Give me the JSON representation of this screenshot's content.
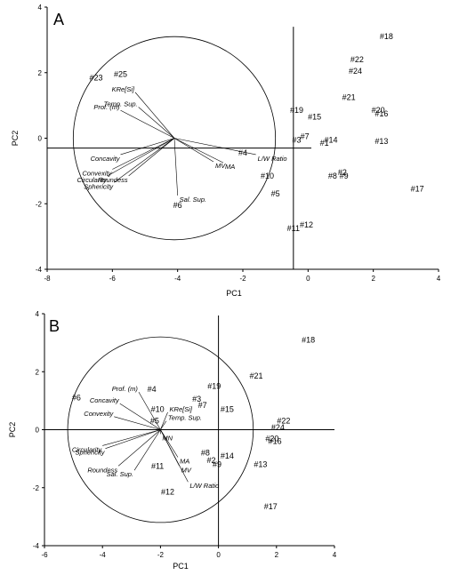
{
  "chart_data": [
    {
      "type": "scatter",
      "panel_label": "A",
      "xlabel": "PC1",
      "ylabel": "PC2",
      "xlim": [
        -8,
        4
      ],
      "ylim": [
        -4,
        4
      ],
      "xticks": [
        -8,
        -6,
        -4,
        -2,
        0,
        2,
        4
      ],
      "yticks": [
        -4,
        -2,
        0,
        2,
        4
      ],
      "reference_lines": {
        "x": -0.45,
        "y": -0.3
      },
      "circle": {
        "cx": -4.1,
        "cy": 0,
        "r": 3.1
      },
      "points": [
        {
          "label": "#18",
          "x": 2.4,
          "y": 3.1
        },
        {
          "label": "#22",
          "x": 1.5,
          "y": 2.4
        },
        {
          "label": "#24",
          "x": 1.45,
          "y": 2.05
        },
        {
          "label": "#21",
          "x": 1.25,
          "y": 1.25
        },
        {
          "label": "#20",
          "x": 2.15,
          "y": 0.85
        },
        {
          "label": "#16",
          "x": 2.25,
          "y": 0.75
        },
        {
          "label": "#19",
          "x": -0.35,
          "y": 0.85
        },
        {
          "label": "#15",
          "x": 0.2,
          "y": 0.65
        },
        {
          "label": "#7",
          "x": -0.1,
          "y": 0.05
        },
        {
          "label": "#3",
          "x": -0.35,
          "y": -0.05
        },
        {
          "label": "#14",
          "x": 0.7,
          "y": -0.05
        },
        {
          "label": "#1",
          "x": 0.5,
          "y": -0.15
        },
        {
          "label": "#13",
          "x": 2.25,
          "y": -0.1
        },
        {
          "label": "#2",
          "x": 1.05,
          "y": -1.05
        },
        {
          "label": "#9",
          "x": 1.1,
          "y": -1.15
        },
        {
          "label": "#8",
          "x": 0.75,
          "y": -1.15
        },
        {
          "label": "#17",
          "x": 3.35,
          "y": -1.55
        },
        {
          "label": "#4",
          "x": -2.0,
          "y": -0.45
        },
        {
          "label": "#10",
          "x": -1.25,
          "y": -1.15
        },
        {
          "label": "#5",
          "x": -1.0,
          "y": -1.7
        },
        {
          "label": "#11",
          "x": -0.45,
          "y": -2.75
        },
        {
          "label": "#12",
          "x": -0.05,
          "y": -2.65
        },
        {
          "label": "#6",
          "x": -4.0,
          "y": -2.05
        },
        {
          "label": "#23",
          "x": -6.5,
          "y": 1.85
        },
        {
          "label": "#25",
          "x": -5.75,
          "y": 1.95
        }
      ],
      "vectors": [
        {
          "label": "KRe[Si]",
          "x": -5.3,
          "y": 1.4
        },
        {
          "label": "Temp. Sup.",
          "x": -5.2,
          "y": 0.95
        },
        {
          "label": "Prof. (m)",
          "x": -5.75,
          "y": 0.85
        },
        {
          "label": "Concavity",
          "x": -5.75,
          "y": -0.5
        },
        {
          "label": "Convexity",
          "x": -6.0,
          "y": -0.95
        },
        {
          "label": "Circularity",
          "x": -6.15,
          "y": -1.15
        },
        {
          "label": "Roundess",
          "x": -5.5,
          "y": -1.15
        },
        {
          "label": "Sphericity",
          "x": -5.95,
          "y": -1.35
        },
        {
          "label": "Sal. Sup.",
          "x": -4.0,
          "y": -1.75
        },
        {
          "label": "L/W Ratio",
          "x": -1.6,
          "y": -0.5
        },
        {
          "label": "MA",
          "x": -2.6,
          "y": -0.75
        },
        {
          "label": "MV",
          "x": -2.9,
          "y": -0.72
        }
      ]
    },
    {
      "type": "scatter",
      "panel_label": "B",
      "xlabel": "PC1",
      "ylabel": "PC2",
      "xlim": [
        -6,
        4
      ],
      "ylim": [
        -4,
        4
      ],
      "xticks": [
        -6,
        -4,
        -2,
        0,
        2,
        4
      ],
      "yticks": [
        -4,
        -2,
        0,
        2,
        4
      ],
      "reference_lines": {
        "x": 0,
        "y": 0
      },
      "circle": {
        "cx": -2,
        "cy": 0,
        "r": 3.2
      },
      "points": [
        {
          "label": "#18",
          "x": 3.1,
          "y": 3.1
        },
        {
          "label": "#21",
          "x": 1.3,
          "y": 1.85
        },
        {
          "label": "#19",
          "x": -0.15,
          "y": 1.5
        },
        {
          "label": "#4",
          "x": -2.3,
          "y": 1.4
        },
        {
          "label": "#6",
          "x": -4.9,
          "y": 1.1
        },
        {
          "label": "#10",
          "x": -2.1,
          "y": 0.7
        },
        {
          "label": "#3",
          "x": -0.75,
          "y": 1.05
        },
        {
          "label": "#7",
          "x": -0.55,
          "y": 0.85
        },
        {
          "label": "#15",
          "x": 0.3,
          "y": 0.7
        },
        {
          "label": "#5",
          "x": -2.2,
          "y": 0.3
        },
        {
          "label": "#22",
          "x": 2.25,
          "y": 0.3
        },
        {
          "label": "#24",
          "x": 2.05,
          "y": 0.08
        },
        {
          "label": "#20",
          "x": 1.85,
          "y": -0.3
        },
        {
          "label": "#16",
          "x": 1.95,
          "y": -0.4
        },
        {
          "label": "#8",
          "x": -0.45,
          "y": -0.8
        },
        {
          "label": "#14",
          "x": 0.3,
          "y": -0.9
        },
        {
          "label": "#2",
          "x": -0.25,
          "y": -1.05
        },
        {
          "label": "#9",
          "x": -0.05,
          "y": -1.2
        },
        {
          "label": "#13",
          "x": 1.45,
          "y": -1.2
        },
        {
          "label": "#11",
          "x": -2.1,
          "y": -1.25
        },
        {
          "label": "#12",
          "x": -1.75,
          "y": -2.15
        },
        {
          "label": "#17",
          "x": 1.8,
          "y": -2.65
        }
      ],
      "vectors": [
        {
          "label": "Prof. (m)",
          "x": -2.75,
          "y": 1.3
        },
        {
          "label": "Concavity",
          "x": -3.4,
          "y": 0.9
        },
        {
          "label": "KRe[Si]",
          "x": -1.75,
          "y": 0.6
        },
        {
          "label": "Temp. Sup.",
          "x": -1.8,
          "y": 0.3
        },
        {
          "label": "Convexity",
          "x": -3.6,
          "y": 0.45
        },
        {
          "label": "MN",
          "x": -2.0,
          "y": -0.15
        },
        {
          "label": "Circularity",
          "x": -4.0,
          "y": -0.55
        },
        {
          "label": "Sphericity",
          "x": -3.9,
          "y": -0.65
        },
        {
          "label": "Roundess",
          "x": -3.45,
          "y": -1.25
        },
        {
          "label": "Sal. Sup.",
          "x": -2.9,
          "y": -1.4
        },
        {
          "label": "MA",
          "x": -1.4,
          "y": -0.95
        },
        {
          "label": "MV",
          "x": -1.35,
          "y": -1.25
        },
        {
          "label": "L/W Ratio",
          "x": -1.05,
          "y": -1.8
        }
      ]
    }
  ]
}
